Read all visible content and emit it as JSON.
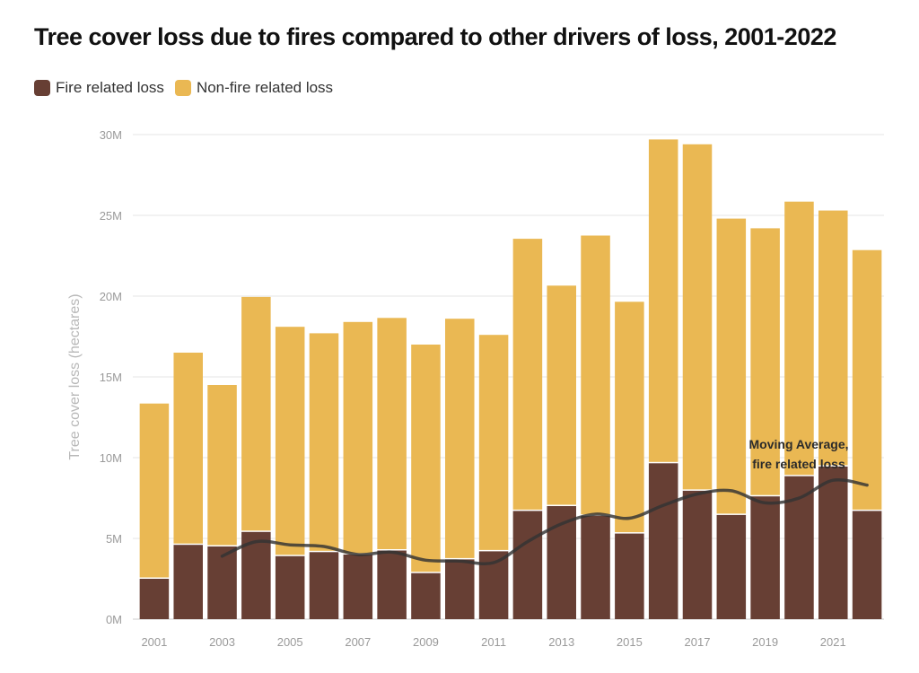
{
  "chart_data": {
    "type": "bar",
    "stacked": true,
    "title": "Tree cover loss due to fires compared to other drivers of loss, 2001-2022",
    "ylabel": "Tree cover loss (hectares)",
    "xlabel": "",
    "ylim": [
      0,
      30000000
    ],
    "yticks": [
      0,
      5000000,
      10000000,
      15000000,
      20000000,
      25000000,
      30000000
    ],
    "ytick_labels": [
      "0M",
      "5M",
      "10M",
      "15M",
      "20M",
      "25M",
      "30M"
    ],
    "categories": [
      "2001",
      "2002",
      "2003",
      "2004",
      "2005",
      "2006",
      "2007",
      "2008",
      "2009",
      "2010",
      "2011",
      "2012",
      "2013",
      "2014",
      "2015",
      "2016",
      "2017",
      "2018",
      "2019",
      "2020",
      "2021",
      "2022"
    ],
    "xtick_labels": [
      "2001",
      "",
      "2003",
      "",
      "2005",
      "",
      "2007",
      "",
      "2009",
      "",
      "2011",
      "",
      "2013",
      "",
      "2015",
      "",
      "2017",
      "",
      "2019",
      "",
      "2021",
      ""
    ],
    "series": [
      {
        "name": "Fire related loss",
        "color": "#673f34",
        "values": [
          2500000,
          4600000,
          4500000,
          5400000,
          3900000,
          4150000,
          4000000,
          4250000,
          2850000,
          3700000,
          4200000,
          6700000,
          7000000,
          6400000,
          5300000,
          9650000,
          7950000,
          6450000,
          7600000,
          8850000,
          9450000,
          6700000
        ]
      },
      {
        "name": "Non-fire related loss",
        "color": "#eab853",
        "values": [
          10850000,
          11900000,
          10000000,
          14550000,
          14200000,
          13550000,
          14400000,
          14400000,
          14150000,
          14900000,
          13400000,
          16850000,
          13650000,
          17350000,
          14350000,
          20050000,
          21450000,
          18350000,
          16600000,
          17000000,
          15850000,
          16150000
        ]
      }
    ],
    "moving_average": {
      "name": "Moving Average, fire related loss",
      "color": "#333333",
      "start_year": "2003",
      "values": [
        3900000,
        4800000,
        4600000,
        4500000,
        4000000,
        4150000,
        3650000,
        3600000,
        3500000,
        4800000,
        5900000,
        6500000,
        6250000,
        7050000,
        7750000,
        7950000,
        7200000,
        7500000,
        8600000,
        8300000
      ]
    },
    "annotation": {
      "line1": "Moving Average,",
      "line2": "fire related loss"
    },
    "grid": true,
    "legend_position": "top-left"
  }
}
